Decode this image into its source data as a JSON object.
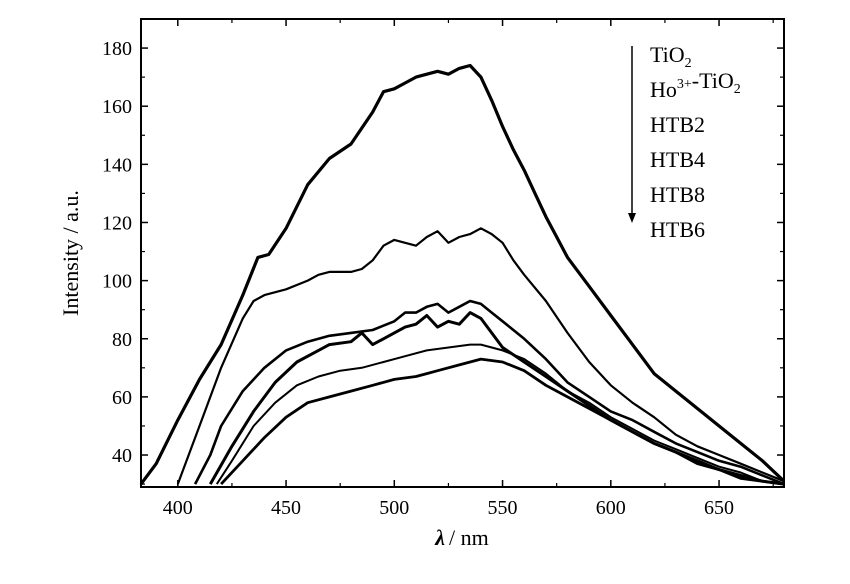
{
  "chart_data": {
    "type": "line",
    "xlabel": {
      "symbol": "λ",
      "unit": "/ nm"
    },
    "ylabel": "Intensity / a.u.",
    "xlim": [
      383,
      680
    ],
    "ylim": [
      29,
      190
    ],
    "x_ticks": [
      400,
      450,
      500,
      550,
      600,
      650
    ],
    "y_ticks": [
      40,
      60,
      80,
      100,
      120,
      140,
      160,
      180
    ],
    "grid": false,
    "legend_position": "top-right",
    "legend_arrow": "down",
    "series": [
      {
        "name": "TiO2",
        "legend": {
          "base": "TiO",
          "sub": "2",
          "sup": "",
          "tail": "",
          "tailsub": ""
        },
        "stroke": 3.2,
        "points": [
          [
            383,
            30
          ],
          [
            390,
            37
          ],
          [
            400,
            52
          ],
          [
            410,
            66
          ],
          [
            420,
            78
          ],
          [
            430,
            95
          ],
          [
            437,
            108
          ],
          [
            442,
            109
          ],
          [
            450,
            118
          ],
          [
            460,
            133
          ],
          [
            470,
            142
          ],
          [
            480,
            147
          ],
          [
            490,
            158
          ],
          [
            495,
            165
          ],
          [
            500,
            166
          ],
          [
            505,
            168
          ],
          [
            510,
            170
          ],
          [
            515,
            171
          ],
          [
            520,
            172
          ],
          [
            525,
            171
          ],
          [
            530,
            173
          ],
          [
            535,
            174
          ],
          [
            540,
            170
          ],
          [
            545,
            162
          ],
          [
            550,
            153
          ],
          [
            555,
            145
          ],
          [
            560,
            138
          ],
          [
            565,
            130
          ],
          [
            570,
            122
          ],
          [
            575,
            115
          ],
          [
            580,
            108
          ],
          [
            590,
            98
          ],
          [
            600,
            88
          ],
          [
            610,
            78
          ],
          [
            620,
            68
          ],
          [
            630,
            62
          ],
          [
            640,
            56
          ],
          [
            650,
            50
          ],
          [
            660,
            44
          ],
          [
            670,
            38
          ],
          [
            680,
            31
          ]
        ]
      },
      {
        "name": "Ho3+-TiO2",
        "legend": {
          "base": "Ho",
          "sub": "",
          "sup": "3+",
          "tail": "-TiO",
          "tailsub": "2"
        },
        "stroke": 2.2,
        "points": [
          [
            400,
            30
          ],
          [
            410,
            50
          ],
          [
            420,
            70
          ],
          [
            430,
            87
          ],
          [
            435,
            93
          ],
          [
            440,
            95
          ],
          [
            450,
            97
          ],
          [
            460,
            100
          ],
          [
            465,
            102
          ],
          [
            470,
            103
          ],
          [
            480,
            103
          ],
          [
            485,
            104
          ],
          [
            490,
            107
          ],
          [
            495,
            112
          ],
          [
            500,
            114
          ],
          [
            505,
            113
          ],
          [
            510,
            112
          ],
          [
            515,
            115
          ],
          [
            520,
            117
          ],
          [
            525,
            113
          ],
          [
            530,
            115
          ],
          [
            535,
            116
          ],
          [
            540,
            118
          ],
          [
            545,
            116
          ],
          [
            550,
            113
          ],
          [
            555,
            107
          ],
          [
            560,
            102
          ],
          [
            570,
            93
          ],
          [
            580,
            82
          ],
          [
            590,
            72
          ],
          [
            600,
            64
          ],
          [
            610,
            58
          ],
          [
            620,
            53
          ],
          [
            630,
            47
          ],
          [
            640,
            43
          ],
          [
            650,
            40
          ],
          [
            660,
            37
          ],
          [
            670,
            34
          ],
          [
            680,
            31
          ]
        ]
      },
      {
        "name": "HTB2",
        "legend": {
          "base": "HTB2",
          "sub": "",
          "sup": "",
          "tail": "",
          "tailsub": ""
        },
        "stroke": 2.6,
        "points": [
          [
            408,
            30
          ],
          [
            415,
            40
          ],
          [
            420,
            50
          ],
          [
            430,
            62
          ],
          [
            440,
            70
          ],
          [
            450,
            76
          ],
          [
            460,
            79
          ],
          [
            470,
            81
          ],
          [
            480,
            82
          ],
          [
            490,
            83
          ],
          [
            500,
            86
          ],
          [
            505,
            89
          ],
          [
            510,
            89
          ],
          [
            515,
            91
          ],
          [
            520,
            92
          ],
          [
            525,
            89
          ],
          [
            530,
            91
          ],
          [
            535,
            93
          ],
          [
            540,
            92
          ],
          [
            545,
            89
          ],
          [
            550,
            86
          ],
          [
            560,
            80
          ],
          [
            570,
            73
          ],
          [
            580,
            65
          ],
          [
            590,
            60
          ],
          [
            600,
            55
          ],
          [
            610,
            52
          ],
          [
            620,
            48
          ],
          [
            630,
            44
          ],
          [
            640,
            41
          ],
          [
            650,
            38
          ],
          [
            660,
            36
          ],
          [
            670,
            33
          ],
          [
            680,
            30
          ]
        ]
      },
      {
        "name": "HTB4",
        "legend": {
          "base": "HTB4",
          "sub": "",
          "sup": "",
          "tail": "",
          "tailsub": ""
        },
        "stroke": 3.0,
        "points": [
          [
            415,
            30
          ],
          [
            425,
            43
          ],
          [
            435,
            55
          ],
          [
            445,
            65
          ],
          [
            455,
            72
          ],
          [
            465,
            76
          ],
          [
            470,
            78
          ],
          [
            480,
            79
          ],
          [
            485,
            82
          ],
          [
            490,
            78
          ],
          [
            495,
            80
          ],
          [
            500,
            82
          ],
          [
            505,
            84
          ],
          [
            510,
            85
          ],
          [
            515,
            88
          ],
          [
            520,
            84
          ],
          [
            525,
            86
          ],
          [
            530,
            85
          ],
          [
            535,
            89
          ],
          [
            540,
            87
          ],
          [
            545,
            82
          ],
          [
            550,
            77
          ],
          [
            560,
            72
          ],
          [
            570,
            67
          ],
          [
            580,
            62
          ],
          [
            590,
            57
          ],
          [
            600,
            52
          ],
          [
            610,
            48
          ],
          [
            620,
            44
          ],
          [
            630,
            41
          ],
          [
            640,
            38
          ],
          [
            650,
            35
          ],
          [
            660,
            33
          ],
          [
            670,
            31
          ],
          [
            680,
            30
          ]
        ]
      },
      {
        "name": "HTB8",
        "legend": {
          "base": "HTB8",
          "sub": "",
          "sup": "",
          "tail": "",
          "tailsub": ""
        },
        "stroke": 2.0,
        "points": [
          [
            418,
            30
          ],
          [
            425,
            38
          ],
          [
            435,
            50
          ],
          [
            445,
            58
          ],
          [
            455,
            64
          ],
          [
            465,
            67
          ],
          [
            475,
            69
          ],
          [
            485,
            70
          ],
          [
            495,
            72
          ],
          [
            505,
            74
          ],
          [
            515,
            76
          ],
          [
            525,
            77
          ],
          [
            535,
            78
          ],
          [
            540,
            78
          ],
          [
            550,
            76
          ],
          [
            560,
            73
          ],
          [
            570,
            68
          ],
          [
            580,
            62
          ],
          [
            590,
            58
          ],
          [
            600,
            53
          ],
          [
            610,
            49
          ],
          [
            620,
            45
          ],
          [
            630,
            42
          ],
          [
            640,
            39
          ],
          [
            650,
            36
          ],
          [
            660,
            34
          ],
          [
            670,
            31
          ],
          [
            680,
            30
          ]
        ]
      },
      {
        "name": "HTB6",
        "legend": {
          "base": "HTB6",
          "sub": "",
          "sup": "",
          "tail": "",
          "tailsub": ""
        },
        "stroke": 2.8,
        "points": [
          [
            420,
            30
          ],
          [
            430,
            38
          ],
          [
            440,
            46
          ],
          [
            450,
            53
          ],
          [
            460,
            58
          ],
          [
            470,
            60
          ],
          [
            480,
            62
          ],
          [
            490,
            64
          ],
          [
            500,
            66
          ],
          [
            510,
            67
          ],
          [
            515,
            68
          ],
          [
            520,
            69
          ],
          [
            530,
            71
          ],
          [
            535,
            72
          ],
          [
            540,
            73
          ],
          [
            550,
            72
          ],
          [
            560,
            69
          ],
          [
            570,
            64
          ],
          [
            580,
            60
          ],
          [
            590,
            56
          ],
          [
            600,
            52
          ],
          [
            610,
            48
          ],
          [
            620,
            44
          ],
          [
            630,
            41
          ],
          [
            640,
            37
          ],
          [
            650,
            35
          ],
          [
            660,
            32
          ],
          [
            670,
            31
          ],
          [
            680,
            30
          ]
        ]
      }
    ]
  }
}
